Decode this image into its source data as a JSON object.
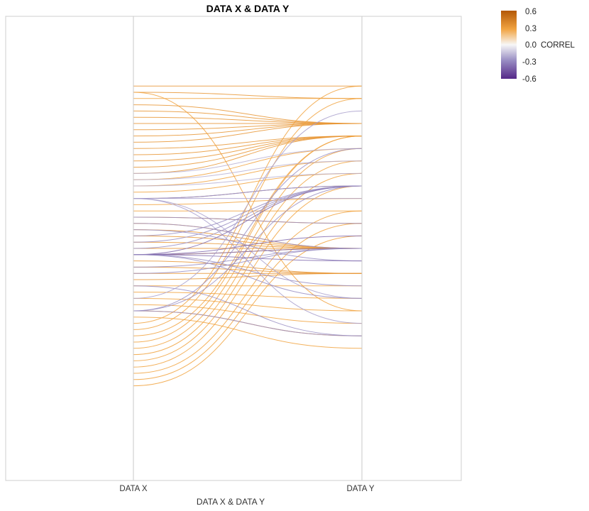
{
  "chart_data": {
    "type": "parallel-coordinates",
    "title": "DATA X & DATA Y",
    "xlabel": "DATA X & DATA Y",
    "axes": [
      "DATA X",
      "DATA Y"
    ],
    "legend": {
      "title": "CORREL",
      "ticks": [
        "0.6",
        "0.3",
        "0.0",
        "-0.3",
        "-0.6"
      ],
      "range": [
        -0.6,
        0.6
      ],
      "placement": "top-right"
    },
    "color_scale": {
      "high": "#b35806",
      "mid_high": "#f1a340",
      "mid": "#f7f7f7",
      "mid_low": "#998ec3",
      "low": "#542788"
    },
    "value_range": [
      0,
      60
    ],
    "series": [
      {
        "x": 4,
        "y": 4,
        "correl": 0.35
      },
      {
        "x": 5,
        "y": 6,
        "correl": 0.35
      },
      {
        "x": 5,
        "y": 40,
        "correl": 0.3
      },
      {
        "x": 6,
        "y": 6,
        "correl": 0.3
      },
      {
        "x": 7,
        "y": 10,
        "correl": 0.35
      },
      {
        "x": 8,
        "y": 10,
        "correl": 0.35
      },
      {
        "x": 9,
        "y": 10,
        "correl": 0.35
      },
      {
        "x": 10,
        "y": 10,
        "correl": 0.35
      },
      {
        "x": 11,
        "y": 10,
        "correl": 0.35
      },
      {
        "x": 12,
        "y": 10,
        "correl": 0.35
      },
      {
        "x": 13,
        "y": 10,
        "correl": 0.35
      },
      {
        "x": 14,
        "y": 12,
        "correl": 0.35
      },
      {
        "x": 15,
        "y": 12,
        "correl": 0.35
      },
      {
        "x": 16,
        "y": 12,
        "correl": 0.35
      },
      {
        "x": 17,
        "y": 12,
        "correl": 0.35
      },
      {
        "x": 18,
        "y": 12,
        "correl": 0.35
      },
      {
        "x": 19,
        "y": 14,
        "correl": 0.3
      },
      {
        "x": 20,
        "y": 16,
        "correl": 0.3
      },
      {
        "x": 21,
        "y": 18,
        "correl": 0.3
      },
      {
        "x": 22,
        "y": 20,
        "correl": 0.3
      },
      {
        "x": 23,
        "y": 22,
        "correl": 0.3
      },
      {
        "x": 24,
        "y": 24,
        "correl": 0.3
      },
      {
        "x": 25,
        "y": 26,
        "correl": 0.3
      },
      {
        "x": 26,
        "y": 30,
        "correl": 0.3
      },
      {
        "x": 27,
        "y": 30,
        "correl": 0.35
      },
      {
        "x": 28,
        "y": 30,
        "correl": 0.35
      },
      {
        "x": 29,
        "y": 30,
        "correl": 0.35
      },
      {
        "x": 30,
        "y": 30,
        "correl": 0.35
      },
      {
        "x": 31,
        "y": 30,
        "correl": 0.35
      },
      {
        "x": 32,
        "y": 34,
        "correl": 0.35
      },
      {
        "x": 33,
        "y": 34,
        "correl": 0.35
      },
      {
        "x": 34,
        "y": 34,
        "correl": 0.35
      },
      {
        "x": 35,
        "y": 34,
        "correl": 0.35
      },
      {
        "x": 36,
        "y": 36,
        "correl": 0.3
      },
      {
        "x": 37,
        "y": 38,
        "correl": 0.3
      },
      {
        "x": 38,
        "y": 40,
        "correl": 0.3
      },
      {
        "x": 39,
        "y": 42,
        "correl": 0.3
      },
      {
        "x": 40,
        "y": 44,
        "correl": 0.3
      },
      {
        "x": 41,
        "y": 46,
        "correl": 0.3
      },
      {
        "x": 42,
        "y": 4,
        "correl": 0.3
      },
      {
        "x": 43,
        "y": 6,
        "correl": 0.3
      },
      {
        "x": 44,
        "y": 12,
        "correl": 0.3
      },
      {
        "x": 45,
        "y": 12,
        "correl": 0.3
      },
      {
        "x": 46,
        "y": 14,
        "correl": 0.3
      },
      {
        "x": 47,
        "y": 16,
        "correl": 0.3
      },
      {
        "x": 48,
        "y": 18,
        "correl": 0.3
      },
      {
        "x": 49,
        "y": 20,
        "correl": 0.3
      },
      {
        "x": 50,
        "y": 24,
        "correl": 0.3
      },
      {
        "x": 51,
        "y": 26,
        "correl": 0.3
      },
      {
        "x": 52,
        "y": 28,
        "correl": 0.3
      },
      {
        "x": 18,
        "y": 14,
        "correl": -0.2
      },
      {
        "x": 19,
        "y": 16,
        "correl": -0.2
      },
      {
        "x": 20,
        "y": 18,
        "correl": -0.2
      },
      {
        "x": 22,
        "y": 20,
        "correl": -0.25
      },
      {
        "x": 22,
        "y": 20,
        "correl": -0.3
      },
      {
        "x": 22,
        "y": 22,
        "correl": -0.25
      },
      {
        "x": 22,
        "y": 38,
        "correl": -0.25
      },
      {
        "x": 22,
        "y": 42,
        "correl": -0.25
      },
      {
        "x": 25,
        "y": 26,
        "correl": -0.3
      },
      {
        "x": 26,
        "y": 30,
        "correl": -0.3
      },
      {
        "x": 27,
        "y": 32,
        "correl": -0.3
      },
      {
        "x": 28,
        "y": 20,
        "correl": -0.3
      },
      {
        "x": 29,
        "y": 20,
        "correl": -0.3
      },
      {
        "x": 30,
        "y": 20,
        "correl": -0.3
      },
      {
        "x": 31,
        "y": 20,
        "correl": -0.4
      },
      {
        "x": 31,
        "y": 28,
        "correl": -0.4
      },
      {
        "x": 31,
        "y": 30,
        "correl": -0.4
      },
      {
        "x": 31,
        "y": 32,
        "correl": -0.4
      },
      {
        "x": 31,
        "y": 36,
        "correl": -0.3
      },
      {
        "x": 31,
        "y": 38,
        "correl": -0.3
      },
      {
        "x": 33,
        "y": 30,
        "correl": -0.3
      },
      {
        "x": 34,
        "y": 30,
        "correl": -0.3
      },
      {
        "x": 36,
        "y": 44,
        "correl": -0.3
      },
      {
        "x": 38,
        "y": 8,
        "correl": -0.25
      },
      {
        "x": 40,
        "y": 20,
        "correl": -0.3
      },
      {
        "x": 40,
        "y": 44,
        "correl": -0.3
      },
      {
        "x": 40,
        "y": 14,
        "correl": -0.3
      }
    ]
  }
}
